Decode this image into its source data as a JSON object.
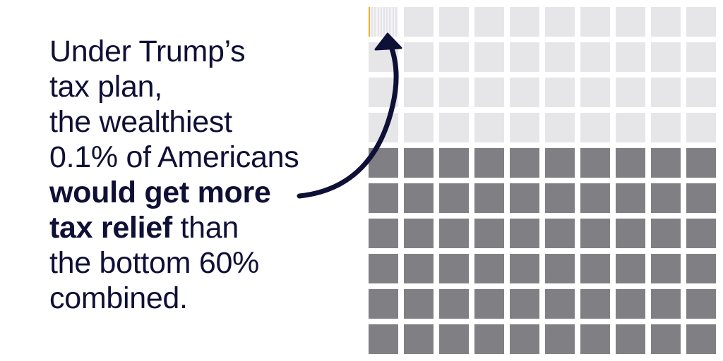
{
  "headline": {
    "line1": "Under Trump’s",
    "line2": "tax plan,",
    "line3": "the wealthiest",
    "line4": "0.1% of Americans",
    "line5": "would get more",
    "line6_bold": "tax relief",
    "line6_rest": " than",
    "line7": "the bottom 60%",
    "line8": "combined."
  },
  "waffle": {
    "total_cells": 100,
    "light_cells": 40,
    "dark_cells": 60,
    "highlight_share_of_one_cell": 0.1,
    "colors": {
      "light": "#e6e6e8",
      "dark": "#808084",
      "highlight": "#f2ae2a",
      "text": "#0f1036",
      "arrow": "#0f1036"
    }
  }
}
